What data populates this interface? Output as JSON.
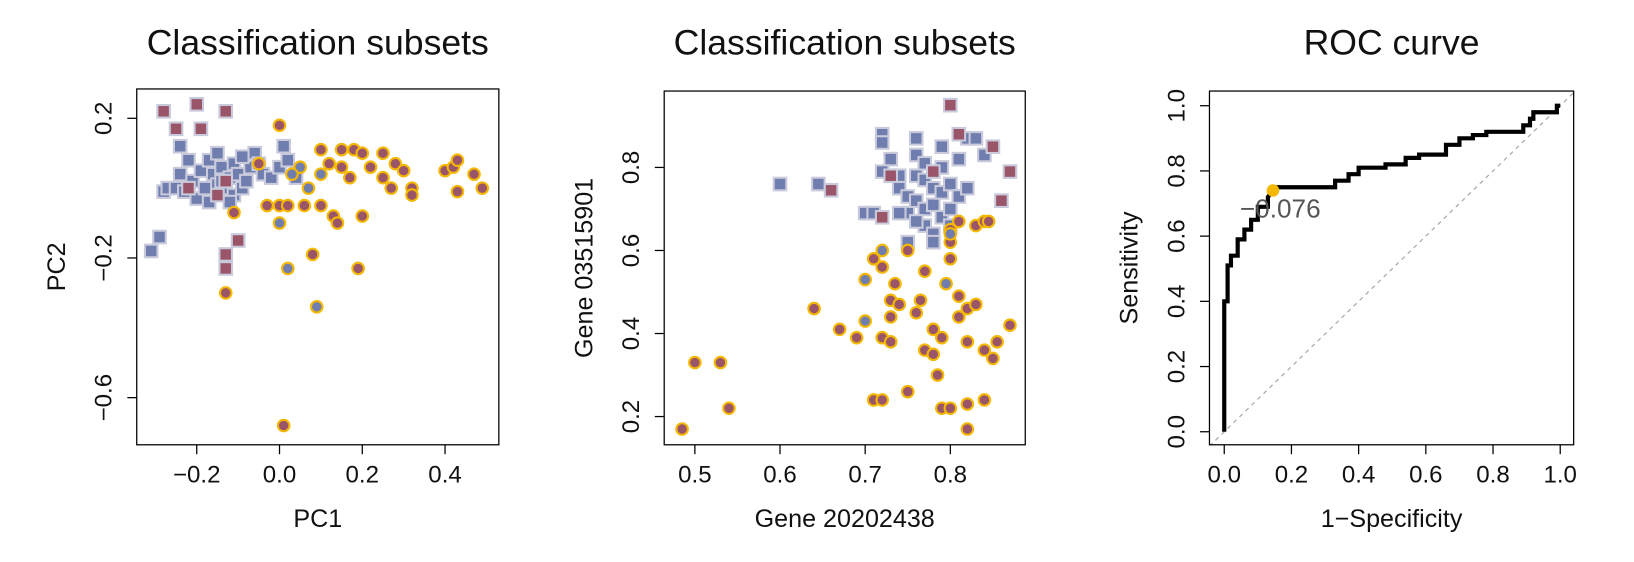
{
  "chart_data": [
    {
      "type": "scatter",
      "title": "Classification subsets",
      "xlabel": "PC1",
      "ylabel": "PC2",
      "xlim": [
        -0.345,
        0.53
      ],
      "ylim": [
        -0.735,
        0.284
      ],
      "xticks": [
        {
          "value": -0.2,
          "label": "−0.2"
        },
        {
          "value": 0,
          "label": "0.0"
        },
        0.2,
        0.4
      ],
      "yticks": [
        {
          "value": -0.6,
          "label": "−0.6"
        },
        {
          "value": -0.2,
          "label": "−0.2"
        },
        0.2
      ],
      "series": [
        {
          "marker": "square",
          "color": "#6f7eae",
          "edgecolor": "#c9cadb",
          "x": [
            -0.31,
            -0.29,
            -0.28,
            -0.27,
            -0.25,
            -0.24,
            -0.23,
            -0.22,
            -0.21,
            -0.2,
            -0.19,
            -0.18,
            -0.17,
            -0.16,
            -0.15,
            -0.15,
            -0.14,
            -0.13,
            -0.12,
            -0.11,
            -0.11,
            -0.1,
            -0.09,
            -0.08,
            -0.07,
            -0.06,
            -0.05,
            -0.04,
            -0.02,
            0.0,
            0.02,
            0.04,
            -0.24,
            -0.12,
            -0.17,
            -0.14,
            -0.09,
            0.01
          ],
          "y": [
            -0.18,
            -0.14,
            -0.01,
            0.0,
            0.0,
            0.04,
            -0.01,
            0.08,
            0.02,
            -0.03,
            0.05,
            0.0,
            0.08,
            0.04,
            0.01,
            0.1,
            0.06,
            0.0,
            0.03,
            -0.02,
            0.07,
            0.04,
            0.0,
            0.02,
            0.06,
            0.1,
            0.07,
            0.04,
            0.03,
            0.06,
            0.08,
            0.03,
            0.12,
            -0.04,
            -0.04,
            0.02,
            0.09,
            0.12
          ]
        },
        {
          "marker": "square",
          "color": "#9a5568",
          "edgecolor": "#c9cadb",
          "x": [
            -0.28,
            -0.2,
            -0.13,
            -0.25,
            -0.19,
            -0.13,
            -0.13,
            -0.13,
            -0.15,
            -0.22,
            -0.1
          ],
          "y": [
            0.22,
            0.24,
            0.22,
            0.17,
            0.17,
            -0.19,
            -0.23,
            0.02,
            -0.02,
            0.0,
            -0.15
          ]
        },
        {
          "marker": "circle",
          "color": "#9a5568",
          "edgecolor": "#f5b800",
          "x": [
            0.0,
            -0.05,
            0.1,
            0.15,
            0.18,
            0.2,
            0.25,
            0.22,
            0.28,
            0.3,
            0.15,
            0.12,
            0.17,
            0.25,
            0.27,
            0.32,
            0.32,
            0.4,
            0.42,
            0.43,
            0.47,
            0.49,
            0.43,
            -0.03,
            0.0,
            0.02,
            0.06,
            0.1,
            0.13,
            0.14,
            0.2,
            0.08,
            0.19,
            -0.13,
            0.01,
            -0.11
          ],
          "y": [
            0.18,
            0.07,
            0.11,
            0.11,
            0.11,
            0.1,
            0.1,
            0.06,
            0.07,
            0.05,
            0.06,
            0.07,
            0.03,
            0.03,
            0.0,
            0.0,
            -0.02,
            0.05,
            0.06,
            0.08,
            0.04,
            0.0,
            -0.01,
            -0.05,
            -0.05,
            -0.05,
            -0.05,
            -0.05,
            -0.08,
            -0.1,
            -0.08,
            -0.19,
            -0.23,
            -0.3,
            -0.68,
            -0.07
          ]
        },
        {
          "marker": "circle",
          "color": "#6f7eae",
          "edgecolor": "#f5b800",
          "x": [
            0.05,
            0.1,
            0.03,
            0.0,
            0.02,
            0.09,
            0.07
          ],
          "y": [
            0.06,
            0.04,
            0.04,
            -0.1,
            -0.23,
            -0.34,
            0.0
          ]
        }
      ]
    },
    {
      "type": "scatter",
      "title": "Classification subsets",
      "xlabel": "Gene 20202438",
      "ylabel": "Gene 03515901",
      "xlim": [
        0.464,
        0.888
      ],
      "ylim": [
        0.132,
        0.984
      ],
      "xticks": [
        0.5,
        0.6,
        0.7,
        0.8
      ],
      "yticks": [
        0.2,
        0.4,
        0.6,
        0.8
      ],
      "series": [
        {
          "marker": "square",
          "color": "#6f7eae",
          "edgecolor": "#c9cadb",
          "x": [
            0.6,
            0.645,
            0.7,
            0.71,
            0.72,
            0.72,
            0.73,
            0.74,
            0.74,
            0.75,
            0.75,
            0.76,
            0.76,
            0.76,
            0.76,
            0.77,
            0.77,
            0.77,
            0.78,
            0.78,
            0.78,
            0.79,
            0.79,
            0.79,
            0.79,
            0.8,
            0.8,
            0.81,
            0.81,
            0.82,
            0.82,
            0.83,
            0.84,
            0.78,
            0.75,
            0.74,
            0.77,
            0.8,
            0.72,
            0.76
          ],
          "y": [
            0.76,
            0.76,
            0.69,
            0.69,
            0.88,
            0.86,
            0.82,
            0.78,
            0.75,
            0.73,
            0.69,
            0.87,
            0.83,
            0.78,
            0.72,
            0.7,
            0.66,
            0.77,
            0.75,
            0.71,
            0.64,
            0.85,
            0.8,
            0.74,
            0.68,
            0.76,
            0.7,
            0.73,
            0.82,
            0.87,
            0.75,
            0.87,
            0.83,
            0.62,
            0.62,
            0.69,
            0.81,
            0.66,
            0.79,
            0.67
          ]
        },
        {
          "marker": "square",
          "color": "#9a5568",
          "edgecolor": "#c9cadb",
          "x": [
            0.66,
            0.73,
            0.8,
            0.81,
            0.85,
            0.87,
            0.86,
            0.78,
            0.72
          ],
          "y": [
            0.745,
            0.78,
            0.95,
            0.88,
            0.85,
            0.79,
            0.72,
            0.79,
            0.68
          ]
        },
        {
          "marker": "circle",
          "color": "#9a5568",
          "edgecolor": "#f5b800",
          "x": [
            0.485,
            0.5,
            0.53,
            0.54,
            0.64,
            0.67,
            0.69,
            0.71,
            0.72,
            0.71,
            0.72,
            0.72,
            0.73,
            0.73,
            0.73,
            0.74,
            0.735,
            0.75,
            0.75,
            0.765,
            0.77,
            0.77,
            0.78,
            0.78,
            0.785,
            0.79,
            0.8,
            0.79,
            0.8,
            0.8,
            0.8,
            0.81,
            0.81,
            0.82,
            0.82,
            0.82,
            0.82,
            0.83,
            0.83,
            0.84,
            0.845,
            0.84,
            0.84,
            0.85,
            0.855,
            0.87,
            0.81,
            0.76
          ],
          "y": [
            0.17,
            0.33,
            0.33,
            0.22,
            0.46,
            0.41,
            0.39,
            0.58,
            0.56,
            0.24,
            0.24,
            0.39,
            0.38,
            0.48,
            0.44,
            0.47,
            0.52,
            0.6,
            0.26,
            0.48,
            0.55,
            0.36,
            0.35,
            0.41,
            0.3,
            0.22,
            0.22,
            0.39,
            0.58,
            0.62,
            0.65,
            0.49,
            0.44,
            0.17,
            0.23,
            0.38,
            0.46,
            0.47,
            0.66,
            0.67,
            0.67,
            0.36,
            0.24,
            0.34,
            0.38,
            0.42,
            0.67,
            0.45
          ]
        },
        {
          "marker": "circle",
          "color": "#6f7eae",
          "edgecolor": "#f5b800",
          "x": [
            0.7,
            0.7,
            0.795,
            0.72,
            0.8
          ],
          "y": [
            0.53,
            0.43,
            0.52,
            0.6,
            0.64
          ]
        }
      ]
    },
    {
      "type": "line",
      "title": "ROC curve",
      "xlabel": "1−Specificity",
      "ylabel": "Sensitivity",
      "xlim": [
        -0.044,
        1.04
      ],
      "ylim": [
        -0.04,
        1.045
      ],
      "xticks": [
        {
          "value": 0,
          "label": "0.0"
        },
        0.2,
        0.4,
        0.6,
        0.8,
        {
          "value": 1,
          "label": "1.0"
        }
      ],
      "yticks": [
        {
          "value": 0,
          "label": "0.0"
        },
        0.2,
        0.4,
        0.6,
        0.8,
        {
          "value": 1,
          "label": "1.0"
        }
      ],
      "color": "#000000",
      "diagonal": true,
      "x": [
        0,
        0,
        0.01,
        0.01,
        0.02,
        0.02,
        0.04,
        0.04,
        0.06,
        0.06,
        0.08,
        0.08,
        0.1,
        0.1,
        0.13,
        0.13,
        0.145,
        0.15,
        0.33,
        0.33,
        0.37,
        0.37,
        0.4,
        0.4,
        0.48,
        0.48,
        0.54,
        0.54,
        0.58,
        0.58,
        0.66,
        0.66,
        0.7,
        0.7,
        0.74,
        0.74,
        0.78,
        0.78,
        0.89,
        0.89,
        0.91,
        0.91,
        0.92,
        0.92,
        0.99,
        0.99,
        1
      ],
      "y": [
        0,
        0.4,
        0.4,
        0.51,
        0.51,
        0.54,
        0.54,
        0.59,
        0.59,
        0.62,
        0.62,
        0.65,
        0.65,
        0.69,
        0.69,
        0.72,
        0.74,
        0.75,
        0.75,
        0.77,
        0.77,
        0.79,
        0.79,
        0.81,
        0.81,
        0.82,
        0.82,
        0.84,
        0.84,
        0.85,
        0.85,
        0.88,
        0.88,
        0.9,
        0.9,
        0.91,
        0.91,
        0.92,
        0.92,
        0.94,
        0.94,
        0.96,
        0.96,
        0.98,
        0.98,
        1.0,
        1.0
      ],
      "highlight": {
        "x": 0.145,
        "y": 0.74,
        "label": "−0.076",
        "color": "#f5b800"
      }
    }
  ]
}
